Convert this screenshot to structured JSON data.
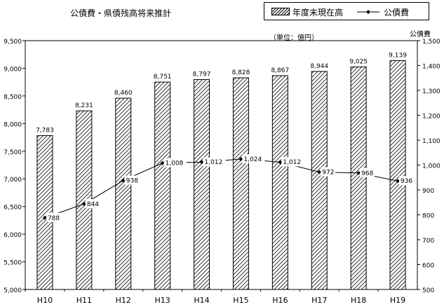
{
  "title": "公債費・県債残高将来推計",
  "unit_note": "（単位：億円）",
  "right_axis_title": "公債費",
  "legend": {
    "bar_label": "年度末現在高",
    "line_label": "公債費"
  },
  "colors": {
    "bar_hatch": "#000000",
    "axis": "#000000",
    "line": "#000000"
  },
  "chart_data": {
    "type": "bar",
    "categories": [
      "H10",
      "H11",
      "H12",
      "H13",
      "H14",
      "H15",
      "H16",
      "H17",
      "H18",
      "H19"
    ],
    "series": [
      {
        "name": "年度末現在高",
        "type": "bar",
        "axis": "left",
        "values": [
          7783,
          8231,
          8460,
          8751,
          8797,
          8828,
          8867,
          8944,
          9025,
          9139
        ],
        "labels": [
          "7,783",
          "8,231",
          "8,460",
          "8,751",
          "8,797",
          "8,828",
          "8,867",
          "8,944",
          "9,025",
          "9,139"
        ]
      },
      {
        "name": "公債費",
        "type": "line",
        "axis": "right",
        "values": [
          788,
          844,
          938,
          1008,
          1012,
          1024,
          1012,
          972,
          968,
          936
        ],
        "labels": [
          "788",
          "844",
          "938",
          "1,008",
          "1,012",
          "1,024",
          "1,012",
          "972",
          "968",
          "936"
        ]
      }
    ],
    "left_axis": {
      "ylim": [
        5000,
        9500
      ],
      "ticks": [
        "5,000",
        "5,500",
        "6,000",
        "6,500",
        "7,000",
        "7,500",
        "8,000",
        "8,500",
        "9,000",
        "9,500"
      ]
    },
    "right_axis": {
      "ylim": [
        500,
        1500
      ],
      "ticks": [
        "500",
        "600",
        "700",
        "800",
        "900",
        "1,000",
        "1,100",
        "1,200",
        "1,300",
        "1,400",
        "1,500"
      ]
    },
    "grid": false,
    "legend_position": "top-right"
  }
}
